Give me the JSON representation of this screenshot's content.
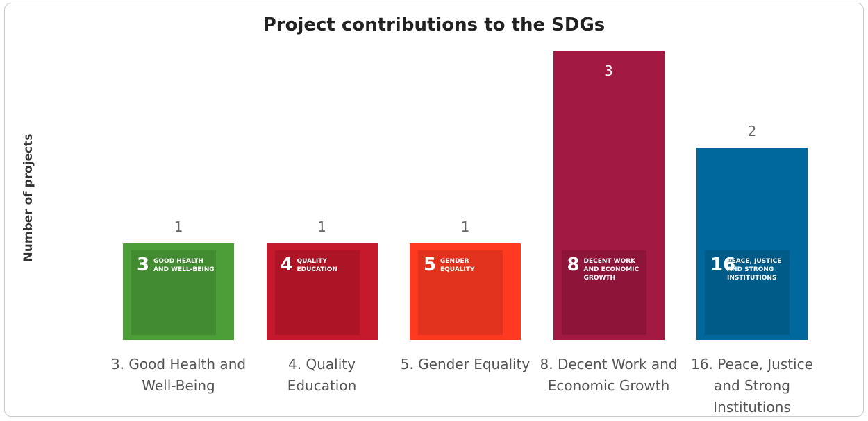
{
  "chart_data": {
    "type": "bar",
    "title": "Project contributions to the SDGs",
    "y_label": "Number of projects",
    "categories": [
      "3. Good Health and Well-Being",
      "4. Quality Education",
      "5. Gender Equality",
      "8. Decent Work and Economic Growth",
      "16. Peace, Justice and Strong Institutions"
    ],
    "values": [
      1,
      1,
      1,
      3,
      2
    ],
    "colors": [
      "#4c9f38",
      "#c5192d",
      "#ff3a21",
      "#a21942",
      "#00689d"
    ],
    "icons": [
      {
        "number": "3",
        "label": "GOOD HEALTH AND WELL-BEING"
      },
      {
        "number": "4",
        "label": "QUALITY EDUCATION"
      },
      {
        "number": "5",
        "label": "GENDER EQUALITY"
      },
      {
        "number": "8",
        "label": "DECENT WORK AND ECONOMIC GROWTH"
      },
      {
        "number": "16",
        "label": "PEACE, JUSTICE AND STRONG INSTITUTIONS"
      }
    ]
  }
}
